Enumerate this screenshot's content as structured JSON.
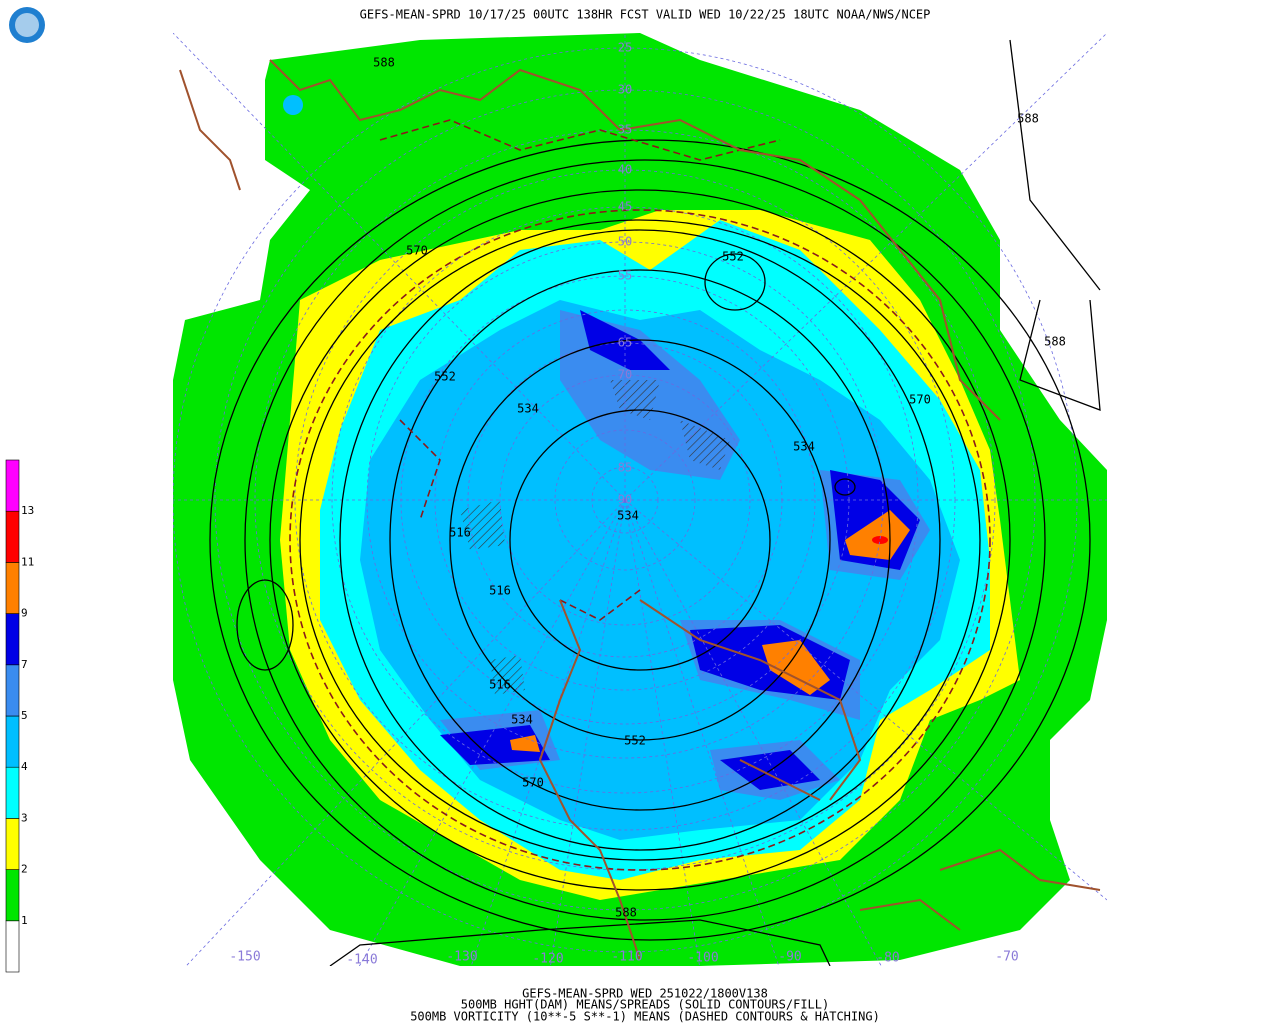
{
  "header": {
    "title": "GEFS-MEAN-SPRD 10/17/25 00UTC 138HR FCST VALID WED 10/22/25 18UTC NOAA/NWS/NCEP"
  },
  "footer": {
    "lines": [
      "GEFS-MEAN-SPRD WED 251022/1800V138",
      "500MB HGHT(DAM) MEANS/SPREADS (SOLID CONTOURS/FILL)",
      "500MB VORTICITY (10**-5 S**-1) MEANS (DASHED CONTOURS & HATCHING)"
    ]
  },
  "legend": {
    "labels": [
      1,
      2,
      3,
      4,
      5,
      7,
      9,
      11,
      13
    ],
    "colors": [
      "#ffffff",
      "#00e600",
      "#ffff00",
      "#00ffff",
      "#00bfff",
      "#3a8cf0",
      "#0000e6",
      "#ff8000",
      "#ff0000",
      "#ff00ff"
    ]
  },
  "map": {
    "latitude_labels": [
      "25",
      "30",
      "35",
      "40",
      "45",
      "50",
      "55",
      "65",
      "70",
      "85",
      "90"
    ],
    "longitude_labels": [
      "-150",
      "-140",
      "-130",
      "-120",
      "-110",
      "-100",
      "-90",
      "-80",
      "-70"
    ],
    "contour_labels": [
      "588",
      "588",
      "570",
      "552",
      "534",
      "552",
      "570",
      "534",
      "534",
      "516",
      "516",
      "516",
      "534",
      "552",
      "570",
      "588",
      "588"
    ]
  }
}
